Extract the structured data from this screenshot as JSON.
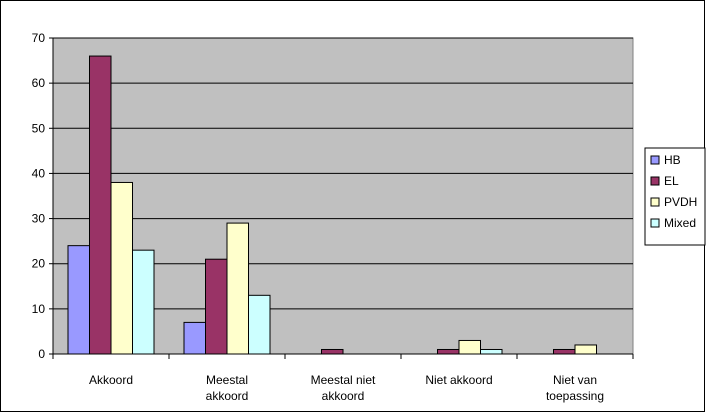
{
  "chart_data": {
    "type": "bar",
    "categories": [
      [
        "Akkoord"
      ],
      [
        "Meestal",
        "akkoord"
      ],
      [
        "Meestal niet",
        "akkoord"
      ],
      [
        "Niet akkoord"
      ],
      [
        "Niet van",
        "toepassing"
      ]
    ],
    "series": [
      {
        "name": "HB",
        "color": "#9999ff",
        "values": [
          24,
          7,
          0,
          0,
          0
        ]
      },
      {
        "name": "EL",
        "color": "#993366",
        "values": [
          66,
          21,
          1,
          1,
          1
        ]
      },
      {
        "name": "PVDH",
        "color": "#ffffcc",
        "values": [
          38,
          29,
          0,
          3,
          2
        ]
      },
      {
        "name": "Mixed",
        "color": "#ccffff",
        "values": [
          23,
          13,
          0,
          1,
          0
        ]
      }
    ],
    "ylim": [
      0,
      70
    ],
    "yticks": [
      "0",
      "10",
      "20",
      "30",
      "40",
      "50",
      "60",
      "70"
    ],
    "plot_background": "#c0c0c0",
    "grid": true,
    "legend_position": "right"
  }
}
